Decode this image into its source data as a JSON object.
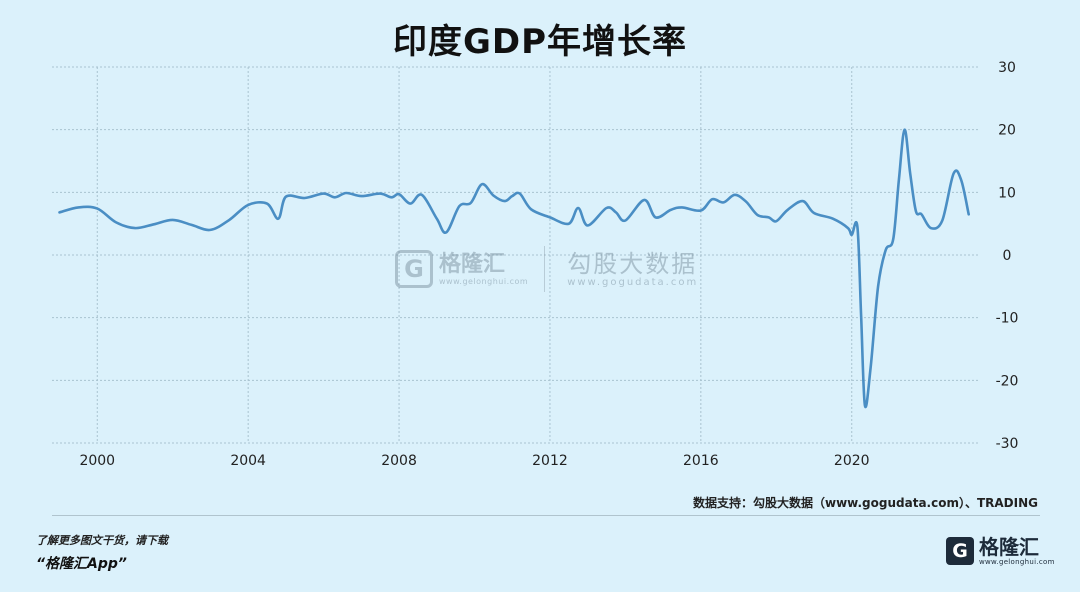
{
  "chart_data": {
    "type": "line",
    "title": "印度GDP年增长率",
    "xlabel": "",
    "ylabel": "",
    "xlim": [
      1998.8,
      2023.4
    ],
    "ylim": [
      -30,
      30
    ],
    "xticks": [
      2000,
      2004,
      2008,
      2012,
      2016,
      2020
    ],
    "yticks": [
      30,
      20,
      10,
      0,
      -10,
      -20,
      -30
    ],
    "grid": true,
    "y_axis_side": "right",
    "series": [
      {
        "name": "",
        "color": "#4a8ec4",
        "x": [
          1999.0,
          1999.5,
          2000.0,
          2000.5,
          2001.0,
          2001.5,
          2002.0,
          2002.5,
          2003.0,
          2003.5,
          2004.0,
          2004.5,
          2004.8,
          2005.0,
          2005.5,
          2006.0,
          2006.3,
          2006.6,
          2007.0,
          2007.5,
          2007.8,
          2008.0,
          2008.3,
          2008.6,
          2009.0,
          2009.25,
          2009.6,
          2009.9,
          2010.2,
          2010.5,
          2010.8,
          2011.0,
          2011.2,
          2011.5,
          2012.0,
          2012.5,
          2012.75,
          2013.0,
          2013.5,
          2013.75,
          2014.0,
          2014.5,
          2014.8,
          2015.2,
          2015.5,
          2016.0,
          2016.3,
          2016.6,
          2016.9,
          2017.2,
          2017.5,
          2017.8,
          2018.0,
          2018.3,
          2018.7,
          2019.0,
          2019.5,
          2019.9,
          2020.0,
          2020.15,
          2020.25,
          2020.35,
          2020.5,
          2020.7,
          2020.9,
          2021.1,
          2021.25,
          2021.4,
          2021.55,
          2021.7,
          2021.85,
          2022.1,
          2022.4,
          2022.7,
          2022.9,
          2023.1
        ],
        "values": [
          6.8,
          7.6,
          7.4,
          5.2,
          4.3,
          4.9,
          5.6,
          4.8,
          4.0,
          5.6,
          8.0,
          8.2,
          5.8,
          9.3,
          9.1,
          9.8,
          9.2,
          9.9,
          9.4,
          9.8,
          9.2,
          9.7,
          8.2,
          9.6,
          5.8,
          3.6,
          7.8,
          8.3,
          11.3,
          9.5,
          8.6,
          9.4,
          9.8,
          7.3,
          6.0,
          5.0,
          7.5,
          4.7,
          7.5,
          6.8,
          5.5,
          8.8,
          6.0,
          7.2,
          7.6,
          7.1,
          8.9,
          8.4,
          9.6,
          8.5,
          6.4,
          6.0,
          5.4,
          7.2,
          8.6,
          6.7,
          5.8,
          4.3,
          3.2,
          4.5,
          -10.0,
          -24.0,
          -18.0,
          -5.0,
          0.8,
          2.5,
          12.0,
          20.0,
          13.0,
          7.0,
          6.5,
          4.3,
          5.5,
          13.0,
          12.0,
          6.5
        ]
      }
    ]
  },
  "watermark": {
    "left_glyph": "G",
    "left_name": "格隆汇",
    "left_sub": "www.gelonghui.com",
    "right_name": "勾股大数据",
    "right_sub": "www.gogudata.com"
  },
  "source": "数据支持：勾股大数据（www.gogudata.com）、TRADING",
  "promo": {
    "line1": "了解更多图文干货，请下载",
    "line2": "“格隆汇App”"
  },
  "logo": {
    "glyph": "G",
    "name": "格隆汇",
    "sub": "www.gelonghui.com"
  }
}
